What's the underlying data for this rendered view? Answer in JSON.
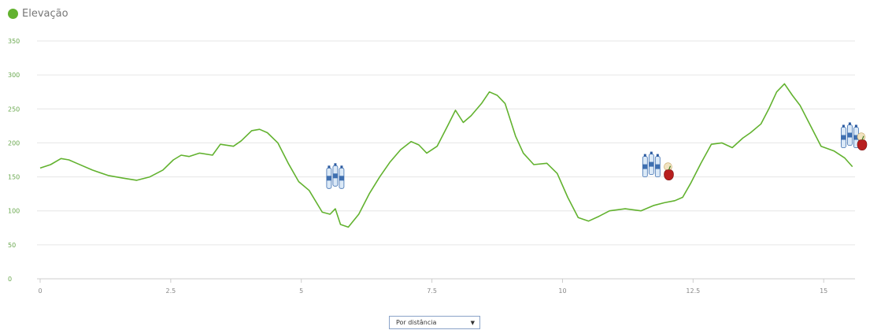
{
  "legend": {
    "label": "Elevação",
    "color": "#62b22f"
  },
  "controls": {
    "mode_select": {
      "selected": "Por distância"
    }
  },
  "chart_data": {
    "type": "line",
    "title": "",
    "xlabel": "",
    "ylabel": "",
    "xlim": [
      0,
      15.6
    ],
    "ylim": [
      0,
      350
    ],
    "x_ticks": [
      0,
      2.5,
      5,
      7.5,
      10,
      12.5,
      15
    ],
    "x_tick_labels": [
      "0",
      "2.5",
      "5",
      "7.5",
      "10",
      "12.5",
      "15"
    ],
    "y_ticks": [
      0,
      50,
      100,
      150,
      200,
      250,
      300,
      350
    ],
    "y_tick_labels": [
      "0",
      "50",
      "100",
      "150",
      "200",
      "250",
      "300",
      "350"
    ],
    "grid": true,
    "line_color": "#62b22f",
    "series": [
      {
        "name": "Elevação",
        "x": [
          0,
          0.2,
          0.4,
          0.55,
          0.7,
          1.0,
          1.3,
          1.6,
          1.85,
          2.1,
          2.35,
          2.55,
          2.7,
          2.85,
          3.05,
          3.3,
          3.45,
          3.7,
          3.85,
          4.05,
          4.2,
          4.35,
          4.55,
          4.75,
          4.95,
          5.15,
          5.4,
          5.55,
          5.65,
          5.75,
          5.9,
          6.1,
          6.3,
          6.5,
          6.7,
          6.9,
          7.1,
          7.25,
          7.4,
          7.6,
          7.8,
          7.95,
          8.1,
          8.25,
          8.45,
          8.6,
          8.75,
          8.9,
          9.1,
          9.25,
          9.45,
          9.7,
          9.9,
          10.1,
          10.3,
          10.5,
          10.7,
          10.9,
          11.2,
          11.5,
          11.75,
          11.95,
          12.15,
          12.3,
          12.45,
          12.65,
          12.85,
          13.05,
          13.25,
          13.45,
          13.6,
          13.8,
          13.95,
          14.1,
          14.25,
          14.4,
          14.55,
          14.75,
          14.95,
          15.2,
          15.4,
          15.55
        ],
        "y": [
          163,
          168,
          177,
          175,
          170,
          160,
          152,
          148,
          145,
          150,
          160,
          175,
          182,
          180,
          185,
          182,
          198,
          195,
          203,
          218,
          220,
          215,
          200,
          170,
          143,
          130,
          98,
          95,
          103,
          80,
          76,
          95,
          125,
          150,
          172,
          190,
          202,
          197,
          185,
          195,
          225,
          248,
          230,
          240,
          258,
          275,
          270,
          258,
          210,
          185,
          168,
          170,
          155,
          120,
          90,
          85,
          92,
          100,
          103,
          100,
          108,
          112,
          115,
          120,
          140,
          170,
          198,
          200,
          193,
          207,
          215,
          228,
          250,
          275,
          287,
          270,
          255,
          225,
          195,
          188,
          178,
          165
        ]
      }
    ],
    "markers": [
      {
        "icon": "water-bottles-icon",
        "x": 5.65,
        "y": 148
      },
      {
        "icon": "water-bottles-icon",
        "x": 11.7,
        "y": 165
      },
      {
        "icon": "apple-icon",
        "x": 12.05,
        "y": 158
      },
      {
        "icon": "water-bottles-icon",
        "x": 15.5,
        "y": 208
      },
      {
        "icon": "apple-icon",
        "x": 15.75,
        "y": 202
      }
    ]
  }
}
